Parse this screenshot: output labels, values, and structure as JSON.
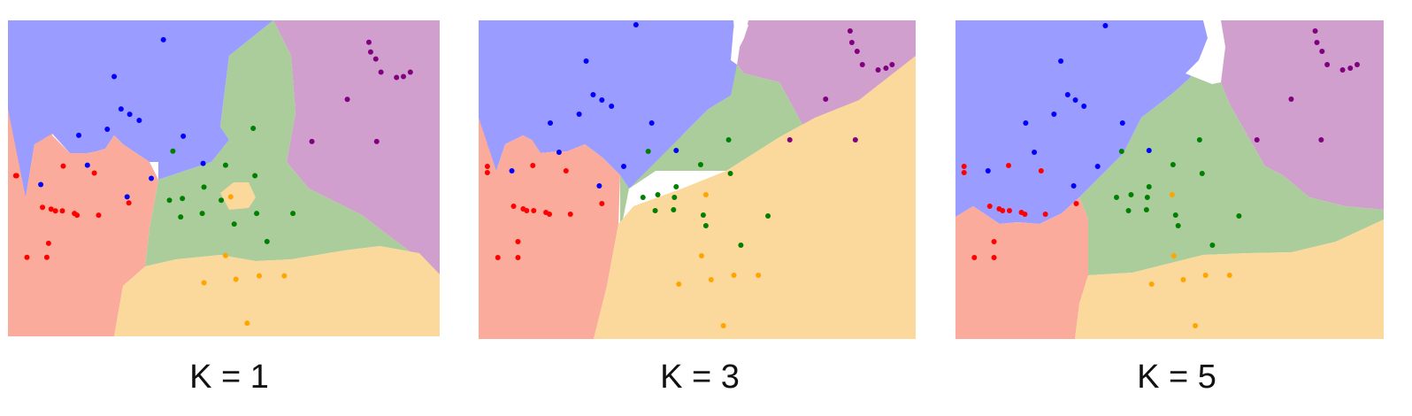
{
  "colors": {
    "blue_region": "#9b9cff",
    "purple_region": "#d19fcd",
    "green_region": "#aacd9b",
    "red_region": "#fbab9b",
    "orange_region": "#fbd89b",
    "blue_point": "#0000ff",
    "purple_point": "#800080",
    "green_point": "#008000",
    "red_point": "#ff0000",
    "orange_point": "#ffa500"
  },
  "chart_data": [
    {
      "type": "scatter",
      "title": "K = 1",
      "xlim": [
        0,
        500
      ],
      "ylim": [
        0,
        360
      ],
      "regions": [
        "blue",
        "purple",
        "green",
        "red",
        "orange"
      ],
      "series": [
        {
          "class": "blue",
          "x": [
            180,
            123,
            131,
            141,
            152,
            115,
            82,
            203,
            92,
            38,
            138,
            166,
            226
          ],
          "y": [
            338,
            296,
            259,
            253,
            246,
            236,
            229,
            228,
            195,
            173,
            159,
            180,
            197
          ]
        },
        {
          "class": "purple",
          "x": [
            418,
            420,
            426,
            432,
            450,
            458,
            466,
            393,
            352,
            427
          ],
          "y": [
            335,
            324,
            316,
            301,
            295,
            296,
            301,
            270,
            222,
            222
          ]
        },
        {
          "class": "green",
          "x": [
            284,
            191,
            252,
            286,
            202,
            227,
            187,
            247,
            288,
            330,
            200,
            225,
            262,
            300
          ],
          "y": [
            237,
            211,
            195,
            183,
            157,
            170,
            155,
            155,
            140,
            140,
            136,
            140,
            128,
            108
          ]
        },
        {
          "class": "red",
          "x": [
            10,
            64,
            100,
            9,
            40,
            50,
            55,
            63,
            77,
            80,
            105,
            140,
            47,
            22,
            45
          ],
          "y": [
            183,
            194,
            186,
            183,
            147,
            145,
            143,
            143,
            140,
            138,
            138,
            152,
            106,
            90,
            90
          ]
        },
        {
          "class": "orange",
          "x": [
            258,
            252,
            264,
            291,
            320,
            227,
            277
          ],
          "y": [
            159,
            92,
            65,
            69,
            69,
            61,
            15
          ]
        }
      ]
    },
    {
      "type": "scatter",
      "title": "K = 3",
      "xlim": [
        0,
        500
      ],
      "ylim": [
        0,
        360
      ],
      "regions": [
        "blue",
        "purple",
        "green",
        "red",
        "orange"
      ],
      "series": [
        {
          "class": "blue",
          "x": [
            180,
            123,
            131,
            141,
            152,
            115,
            82,
            198,
            92,
            38,
            138,
            166,
            226
          ],
          "y": [
            355,
            314,
            276,
            270,
            263,
            254,
            244,
            244,
            211,
            190,
            173,
            195,
            213
          ]
        },
        {
          "class": "purple",
          "x": [
            425,
            427,
            433,
            439,
            457,
            466,
            473,
            397,
            356,
            431
          ],
          "y": [
            348,
            335,
            325,
            310,
            304,
            306,
            310,
            271,
            225,
            225
          ]
        },
        {
          "class": "green",
          "x": [
            286,
            194,
            254,
            288,
            205,
            226,
            188,
            224,
            257,
            331,
            202,
            223,
            260,
            300
          ],
          "y": [
            225,
            212,
            197,
            187,
            163,
            172,
            160,
            160,
            140,
            139,
            145,
            146,
            128,
            106
          ]
        },
        {
          "class": "red",
          "x": [
            10,
            62,
            100,
            10,
            40,
            51,
            55,
            63,
            77,
            81,
            105,
            141,
            45,
            22,
            45
          ],
          "y": [
            195,
            196,
            190,
            188,
            150,
            147,
            145,
            145,
            143,
            141,
            141,
            153,
            110,
            92,
            92
          ]
        },
        {
          "class": "orange",
          "x": [
            260,
            255,
            266,
            292,
            320,
            229,
            280
          ],
          "y": [
            163,
            94,
            67,
            72,
            72,
            62,
            15
          ]
        }
      ]
    },
    {
      "type": "scatter",
      "title": "K = 5",
      "xlim": [
        0,
        500
      ],
      "ylim": [
        0,
        360
      ],
      "regions": [
        "blue",
        "purple",
        "green",
        "red",
        "orange"
      ],
      "series": [
        {
          "class": "blue",
          "x": [
            175,
            123,
            131,
            140,
            150,
            115,
            82,
            195,
            92,
            38,
            138,
            166,
            226
          ],
          "y": [
            354,
            314,
            276,
            270,
            263,
            254,
            244,
            244,
            211,
            190,
            173,
            195,
            213
          ]
        },
        {
          "class": "purple",
          "x": [
            420,
            422,
            428,
            434,
            452,
            461,
            469,
            392,
            352,
            427
          ],
          "y": [
            348,
            335,
            325,
            310,
            304,
            306,
            310,
            271,
            225,
            225
          ]
        },
        {
          "class": "green",
          "x": [
            285,
            194,
            254,
            288,
            205,
            226,
            188,
            224,
            257,
            331,
            202,
            223,
            260,
            300
          ],
          "y": [
            225,
            212,
            197,
            187,
            163,
            172,
            160,
            160,
            140,
            139,
            145,
            146,
            128,
            106
          ]
        },
        {
          "class": "red",
          "x": [
            10,
            62,
            100,
            10,
            40,
            51,
            55,
            63,
            77,
            81,
            105,
            141,
            45,
            22,
            45
          ],
          "y": [
            195,
            196,
            190,
            188,
            150,
            147,
            145,
            145,
            143,
            141,
            141,
            153,
            110,
            92,
            92
          ]
        },
        {
          "class": "orange",
          "x": [
            253,
            255,
            266,
            292,
            320,
            229,
            280
          ],
          "y": [
            163,
            94,
            67,
            72,
            72,
            62,
            15
          ]
        }
      ]
    }
  ]
}
